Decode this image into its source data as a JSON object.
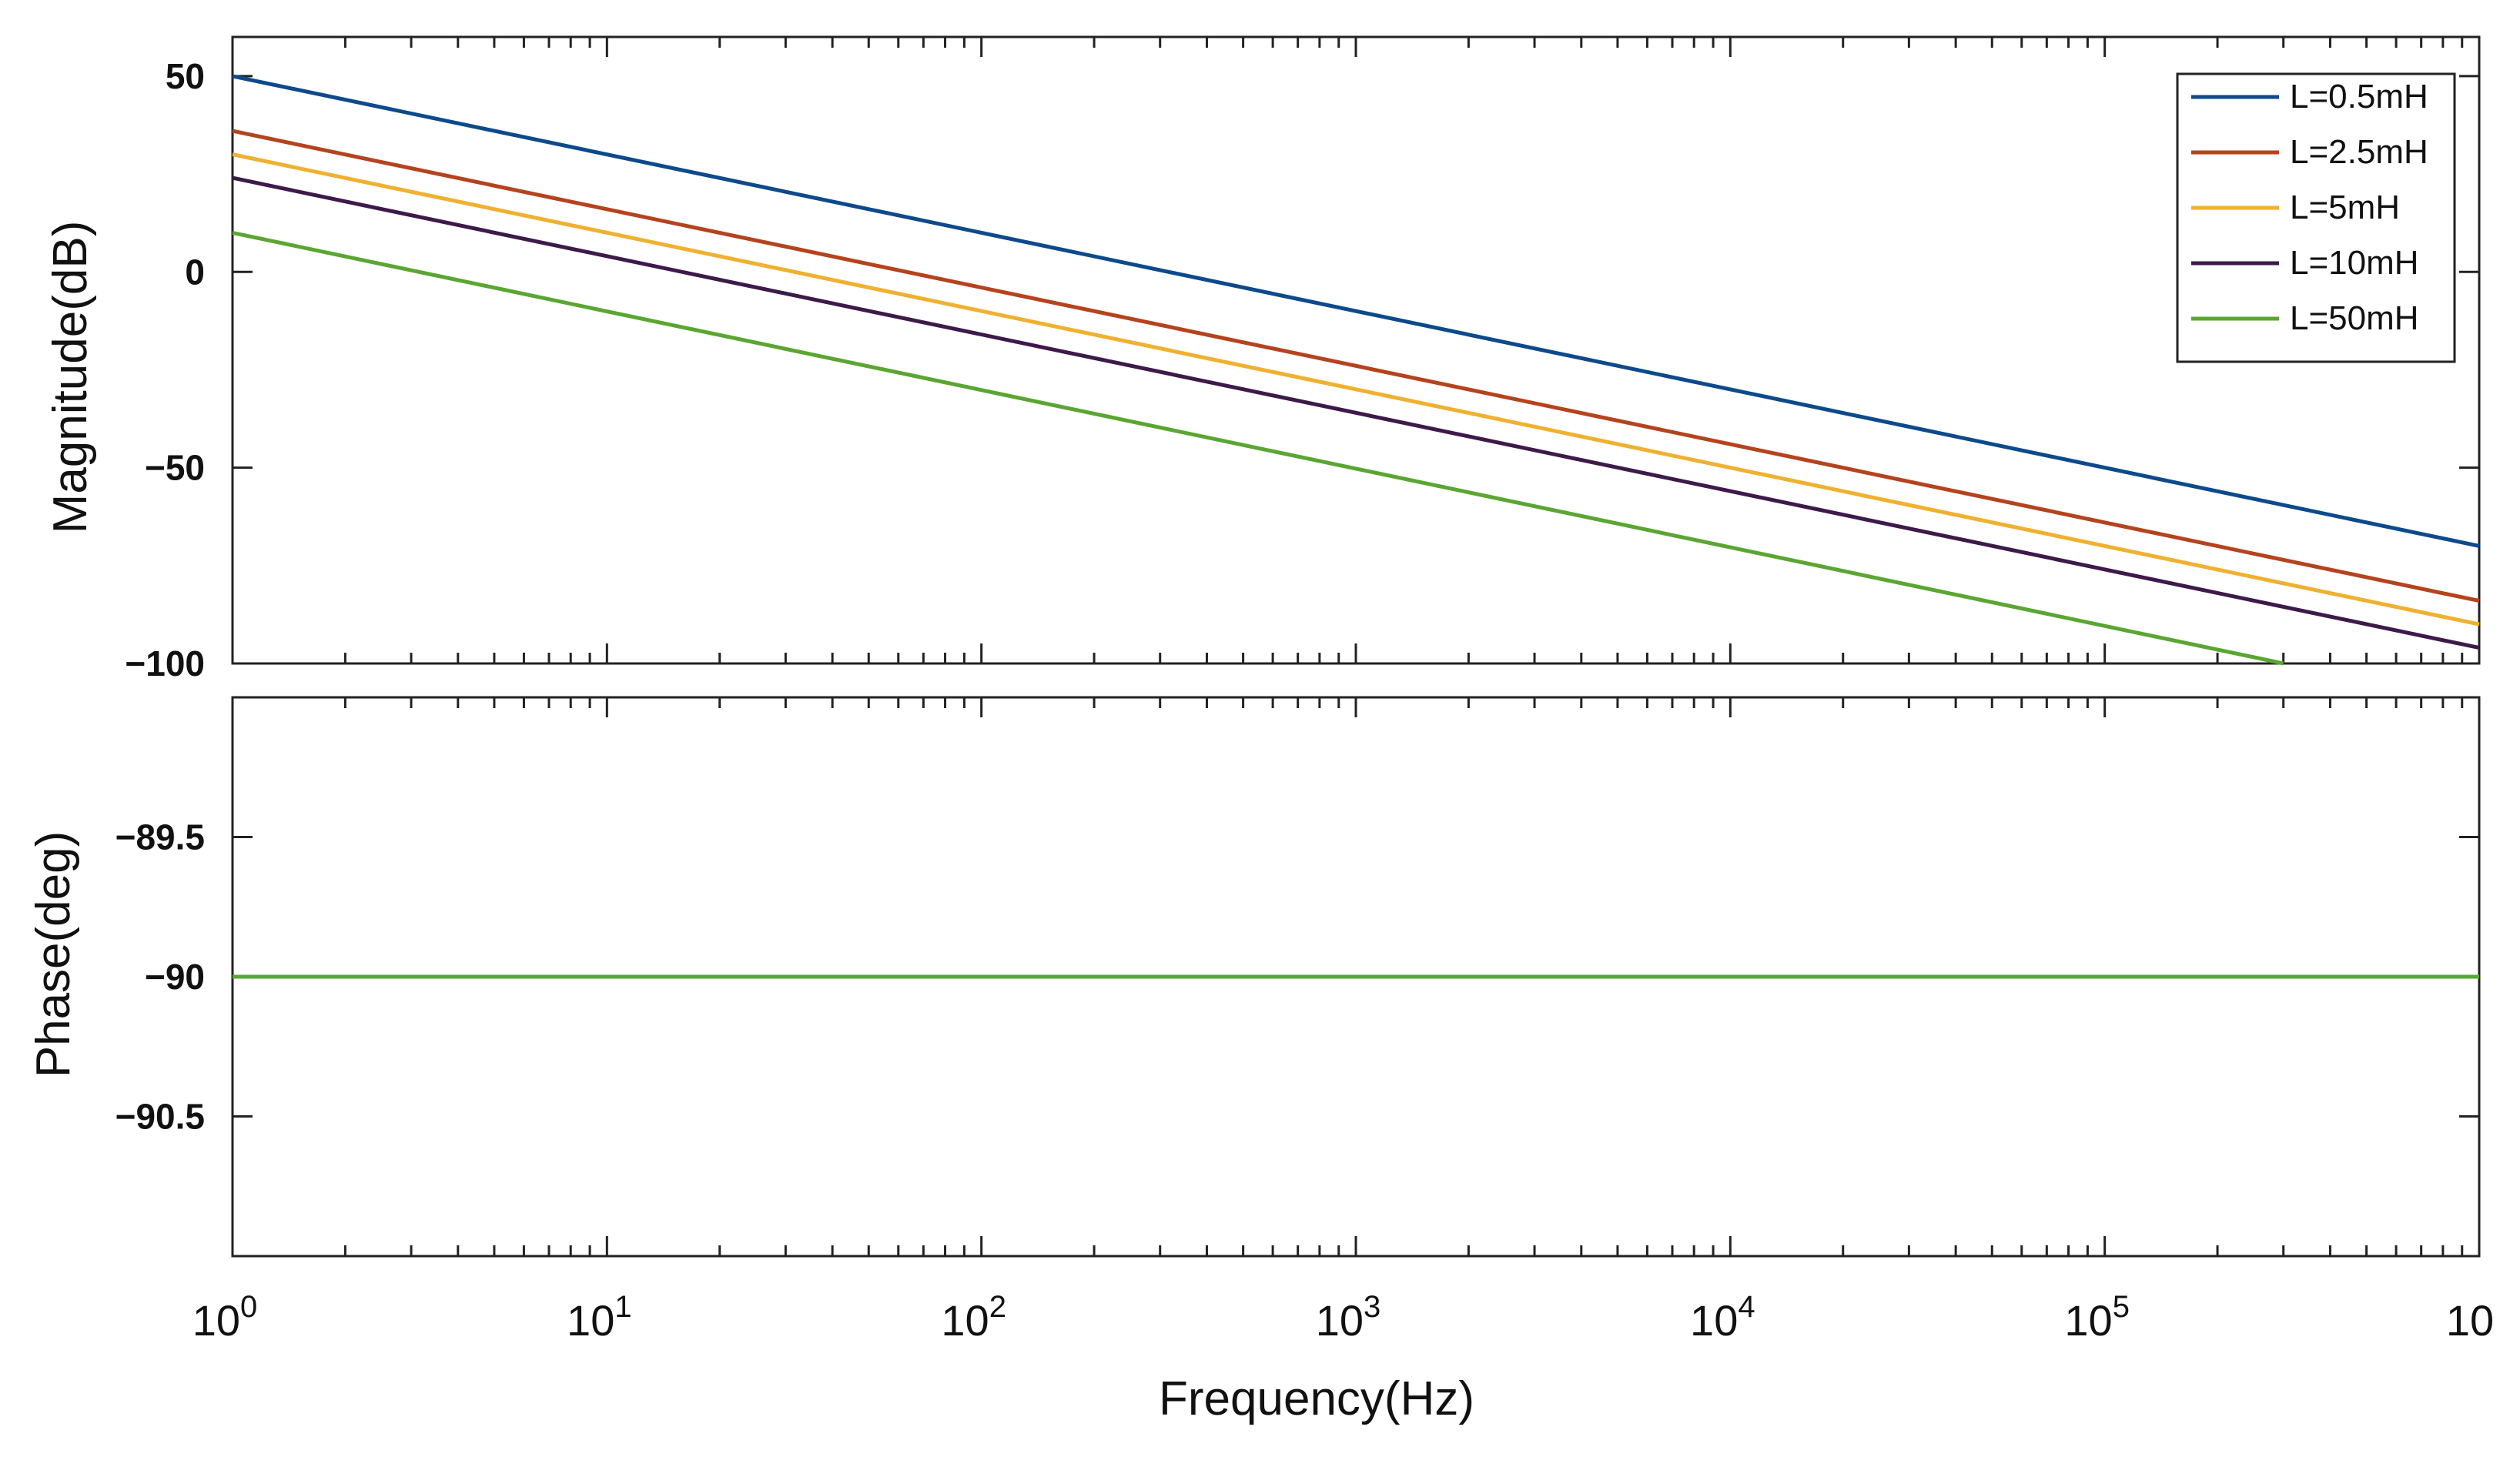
{
  "chart_data": [
    {
      "type": "line",
      "panel": "magnitude",
      "title": "",
      "xlabel": "",
      "ylabel": "Magnitude(dB)",
      "xscale": "log",
      "xlim": [
        1,
        1000000
      ],
      "ylim": [
        -100,
        60
      ],
      "yticks": [
        50,
        0,
        -50,
        -100
      ],
      "ytick_labels": [
        "50",
        "0",
        "−50",
        "−100"
      ],
      "grid": false,
      "legend_position": "top-right",
      "series": [
        {
          "name": "L=0.5mH",
          "color": "#0d4a8c",
          "x": [
            1,
            1000000
          ],
          "y": [
            50,
            -70
          ]
        },
        {
          "name": "L=2.5mH",
          "color": "#b5431e",
          "x": [
            1,
            1000000
          ],
          "y": [
            36,
            -84
          ]
        },
        {
          "name": "L=5mH",
          "color": "#f0b030",
          "x": [
            1,
            1000000
          ],
          "y": [
            30,
            -90
          ]
        },
        {
          "name": "L=10mH",
          "color": "#3d1a4a",
          "x": [
            1,
            1000000
          ],
          "y": [
            24,
            -96
          ]
        },
        {
          "name": "L=50mH",
          "color": "#5aa632",
          "x": [
            1,
            300000
          ],
          "y": [
            10,
            -100
          ]
        }
      ]
    },
    {
      "type": "line",
      "panel": "phase",
      "title": "",
      "xlabel": "Frequency(Hz)",
      "ylabel": "Phase(deg)",
      "xscale": "log",
      "xlim": [
        1,
        1000000
      ],
      "ylim": [
        -91,
        -89
      ],
      "yticks": [
        -89.5,
        -90,
        -90.5
      ],
      "ytick_labels": [
        "−89.5",
        "−90",
        "−90.5"
      ],
      "xtick_base": "10",
      "xtick_exponents": [
        "0",
        "1",
        "2",
        "3",
        "4",
        "5"
      ],
      "xtick_last_label": "10",
      "grid": false,
      "series": [
        {
          "name": "L=0.5mH",
          "color": "#0d4a8c",
          "x": [
            1,
            1000000
          ],
          "y": [
            -90,
            -90
          ]
        },
        {
          "name": "L=2.5mH",
          "color": "#b5431e",
          "x": [
            1,
            1000000
          ],
          "y": [
            -90,
            -90
          ]
        },
        {
          "name": "L=5mH",
          "color": "#f0b030",
          "x": [
            1,
            1000000
          ],
          "y": [
            -90,
            -90
          ]
        },
        {
          "name": "L=10mH",
          "color": "#3d1a4a",
          "x": [
            1,
            1000000
          ],
          "y": [
            -90,
            -90
          ]
        },
        {
          "name": "L=50mH",
          "color": "#5aa632",
          "x": [
            1,
            1000000
          ],
          "y": [
            -90,
            -90
          ]
        }
      ]
    }
  ]
}
